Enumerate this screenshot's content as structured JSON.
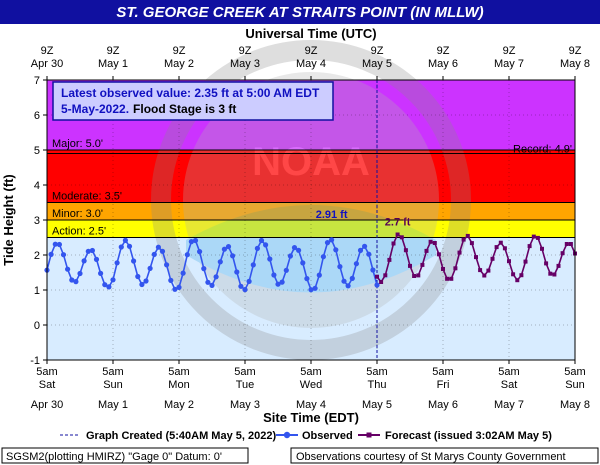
{
  "chart_data": {
    "type": "line",
    "title": "ST. GEORGE CREEK AT STRAITS POINT (IN MLLW)",
    "top_axis_title": "Universal Time (UTC)",
    "xlabel": "Site Time (EDT)",
    "ylabel": "Tide Height (ft)",
    "ylim": [
      -1,
      7
    ],
    "yticks": [
      -1,
      0,
      1,
      2,
      3,
      4,
      5,
      6,
      7
    ],
    "top_ticks": [
      {
        "time": "9Z",
        "date": "Apr 30"
      },
      {
        "time": "9Z",
        "date": "May 1"
      },
      {
        "time": "9Z",
        "date": "May 2"
      },
      {
        "time": "9Z",
        "date": "May 3"
      },
      {
        "time": "9Z",
        "date": "May 4"
      },
      {
        "time": "9Z",
        "date": "May 5"
      },
      {
        "time": "9Z",
        "date": "May 6"
      },
      {
        "time": "9Z",
        "date": "May 7"
      },
      {
        "time": "9Z",
        "date": "May 8"
      }
    ],
    "bottom_ticks": [
      {
        "time": "5am",
        "day": "Sat",
        "date": "Apr 30"
      },
      {
        "time": "5am",
        "day": "Sun",
        "date": "May 1"
      },
      {
        "time": "5am",
        "day": "Mon",
        "date": "May 2"
      },
      {
        "time": "5am",
        "day": "Tue",
        "date": "May 3"
      },
      {
        "time": "5am",
        "day": "Wed",
        "date": "May 4"
      },
      {
        "time": "5am",
        "day": "Thu",
        "date": "May 5"
      },
      {
        "time": "5am",
        "day": "Fri",
        "date": "May 6"
      },
      {
        "time": "5am",
        "day": "Sat",
        "date": "May 7"
      },
      {
        "time": "5am",
        "day": "Sun",
        "date": "May 8"
      }
    ],
    "flood_categories": [
      {
        "name": "Action",
        "label": "Action: 2.5'",
        "value": 2.5,
        "color": "#ffff00"
      },
      {
        "name": "Minor",
        "label": "Minor: 3.0'",
        "value": 3.0,
        "color": "#ffa500"
      },
      {
        "name": "Moderate",
        "label": "Moderate: 3.5'",
        "value": 3.5,
        "color": "#ff0000"
      },
      {
        "name": "Major",
        "label": "Major: 5.0'",
        "value": 5.0,
        "color": "#cc33ff"
      }
    ],
    "record": {
      "label": "Record: 4.9'",
      "value": 4.9
    },
    "info_line1": "Latest observed value: 2.35 ft at 5:00 AM EDT",
    "info_line2a": "5-May-2022.",
    "info_line2b": "Flood Stage is 3 ft",
    "graph_created_day": 5,
    "series": [
      {
        "name": "Observed",
        "color": "#3355ee",
        "peak_label": "2.91 ft",
        "peak_value": 2.91,
        "x_start_day": 0,
        "x_end_day": 5,
        "mean": 1.7,
        "amplitude": [
          0.55,
          0.62,
          0.65,
          0.62,
          0.65,
          0.65
        ],
        "period_hours": 12.42,
        "phase_day": 0.02,
        "step_hours": 1.5
      },
      {
        "name": "Forecast (issued 3:02AM May 5)",
        "color": "#660066",
        "peak_label": "2.7 ft",
        "peak_value": 2.7,
        "x_start_day": 5,
        "x_end_day": 8,
        "mean": 1.9,
        "amplitude": [
          0.6,
          0.55,
          0.55,
          0.55
        ],
        "period_hours": 12.42,
        "phase_day": 0.02,
        "step_hours": 1.5
      }
    ]
  },
  "legend": {
    "created": "Graph Created (5:40AM May 5, 2022)",
    "observed": "Observed",
    "forecast": "Forecast (issued 3:02AM May 5)"
  },
  "footer": {
    "left": "SGSM2(plotting HMIRZ) \"Gage 0\" Datum: 0'",
    "right": "Observations courtesy of St Marys County Government"
  },
  "watermark": {
    "emblem": "noaa-logo",
    "text": "NOAA"
  }
}
